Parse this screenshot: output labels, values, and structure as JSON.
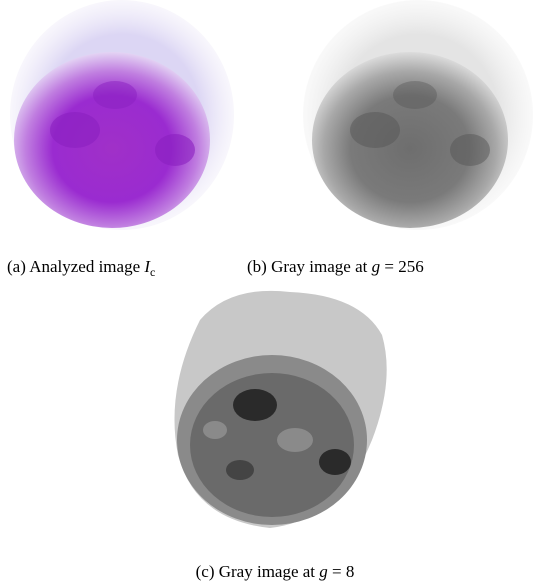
{
  "figures": [
    {
      "label": "(a)",
      "text": "Analyzed image",
      "symbol": "I",
      "subscript": "c"
    },
    {
      "label": "(b)",
      "text": "Gray image at",
      "symbol": "g",
      "relation": "= 256"
    },
    {
      "label": "(c)",
      "text": "Gray image at",
      "symbol": "g",
      "relation": "= 8"
    }
  ]
}
